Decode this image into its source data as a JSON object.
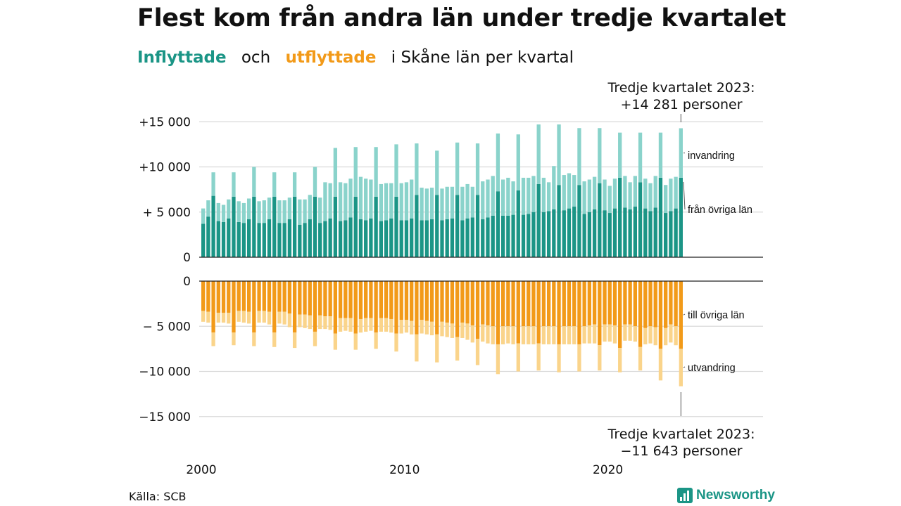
{
  "title": "Flest kom från andra län under tredje kvartalet",
  "subtitle": {
    "inflyttade": "Inflyttade",
    "och": "och",
    "utflyttade": "utflyttade",
    "rest": "i Skåne  län  per  kvartal"
  },
  "annotations": {
    "top_line1": "Tredje kvartalet 2023:",
    "top_line2": "+14 281 personer",
    "bottom_line1": "Tredje kvartalet 2023:",
    "bottom_line2": "−11 643 personer"
  },
  "source": "Källa: SCB",
  "logo": "Newsworthy",
  "colors": {
    "in_lan": "#1b9586",
    "in_invandring": "#8ad3cb",
    "out_lan": "#f29a19",
    "out_utvandring": "#fad48b",
    "grid": "#d9d9d9",
    "axis": "#222222"
  },
  "chart_data": [
    {
      "type": "bar",
      "stacked": true,
      "panel": "inflyttade",
      "x_start": "2000 Q1",
      "x_end": "2023 Q3",
      "frequency": "quarterly",
      "xticks": [
        "2000",
        "2010",
        "2020"
      ],
      "yticks": [
        "0",
        "+ 5 000",
        "+10 000",
        "+15 000"
      ],
      "ylim": [
        0,
        15000
      ],
      "series": [
        {
          "name": "från övriga län",
          "values": [
            3700,
            4500,
            6800,
            4000,
            3900,
            4300,
            6700,
            3900,
            3800,
            4200,
            6700,
            3800,
            3800,
            4200,
            6700,
            3800,
            3800,
            4200,
            6700,
            3600,
            3800,
            4200,
            6700,
            3800,
            4000,
            4300,
            6700,
            4000,
            4100,
            4400,
            6700,
            4200,
            4100,
            4300,
            6700,
            4000,
            4100,
            4300,
            6700,
            4100,
            4100,
            4300,
            6900,
            4100,
            4100,
            4200,
            6900,
            4100,
            4200,
            4300,
            6900,
            4100,
            4300,
            4400,
            6900,
            4200,
            4400,
            4600,
            7300,
            4600,
            4600,
            4700,
            7400,
            4700,
            4800,
            5000,
            8100,
            5000,
            5100,
            5300,
            8000,
            5200,
            5400,
            5600,
            8000,
            4800,
            5000,
            5300,
            8200,
            5200,
            4900,
            5400,
            8800,
            5500,
            5300,
            5600,
            8300,
            5400,
            5100,
            5500,
            8800,
            4900,
            5100,
            5400,
            8800
          ],
          "label": "från övriga län"
        },
        {
          "name": "invandring",
          "values": [
            1700,
            1800,
            2600,
            2000,
            1900,
            2100,
            2700,
            2300,
            2200,
            2300,
            3300,
            2400,
            2500,
            2400,
            2700,
            2500,
            2500,
            2400,
            2700,
            2800,
            2600,
            2700,
            3300,
            2800,
            4300,
            3900,
            5400,
            4300,
            4100,
            4300,
            5500,
            4700,
            4600,
            4300,
            5500,
            4100,
            4100,
            3900,
            5800,
            4100,
            4200,
            4300,
            5700,
            3600,
            3500,
            3500,
            4900,
            3500,
            3600,
            3500,
            5800,
            3700,
            3800,
            3400,
            5700,
            4200,
            4200,
            4400,
            6400,
            4000,
            4200,
            3700,
            6200,
            4100,
            4000,
            4000,
            6600,
            3800,
            3200,
            4800,
            6700,
            3900,
            3900,
            3500,
            6300,
            3600,
            3600,
            3600,
            6100,
            3400,
            3000,
            3300,
            5000,
            3500,
            3000,
            3400,
            5500,
            3300,
            3100,
            3500,
            5000,
            3100,
            3600,
            3500,
            5481
          ],
          "label": "invandring"
        }
      ]
    },
    {
      "type": "bar",
      "stacked": true,
      "panel": "utflyttade",
      "x_start": "2000 Q1",
      "x_end": "2023 Q3",
      "frequency": "quarterly",
      "xticks": [
        "2000",
        "2010",
        "2020"
      ],
      "yticks": [
        "0",
        "− 5 000",
        "−10 000",
        "−15 000"
      ],
      "ylim": [
        -15000,
        0
      ],
      "series": [
        {
          "name": "till övriga län",
          "values": [
            -3300,
            -3400,
            -5700,
            -3500,
            -3500,
            -3500,
            -5700,
            -3300,
            -3300,
            -3400,
            -5700,
            -3300,
            -3300,
            -3400,
            -5700,
            -3400,
            -3400,
            -3600,
            -5700,
            -3700,
            -3700,
            -3800,
            -5600,
            -3800,
            -3900,
            -3900,
            -5800,
            -4100,
            -4100,
            -4100,
            -5800,
            -4200,
            -4100,
            -4100,
            -5700,
            -4100,
            -4100,
            -4200,
            -5800,
            -4300,
            -4300,
            -4400,
            -5900,
            -4300,
            -4400,
            -4500,
            -5900,
            -4500,
            -4600,
            -4700,
            -6200,
            -4600,
            -4700,
            -4900,
            -6400,
            -4800,
            -4900,
            -5000,
            -7000,
            -5000,
            -5000,
            -5000,
            -6900,
            -5000,
            -5000,
            -5000,
            -6900,
            -5000,
            -5000,
            -5000,
            -7000,
            -5000,
            -5000,
            -5000,
            -7000,
            -5000,
            -4900,
            -4800,
            -7100,
            -4800,
            -4800,
            -4900,
            -7400,
            -4800,
            -4800,
            -5000,
            -7300,
            -5200,
            -5000,
            -5100,
            -7500,
            -5200,
            -4800,
            -5000,
            -7500
          ],
          "label": "till övriga län"
        },
        {
          "name": "utvandring",
          "values": [
            -1200,
            -1200,
            -1500,
            -1100,
            -1100,
            -1200,
            -1400,
            -1200,
            -1300,
            -1300,
            -1500,
            -1300,
            -1300,
            -1400,
            -1600,
            -1300,
            -1400,
            -1500,
            -1700,
            -1400,
            -1500,
            -1500,
            -1600,
            -1500,
            -1400,
            -1500,
            -1800,
            -1500,
            -1400,
            -1500,
            -1800,
            -1500,
            -1500,
            -1400,
            -1800,
            -1500,
            -1500,
            -1500,
            -2000,
            -1500,
            -1400,
            -1500,
            -3000,
            -1500,
            -1500,
            -1500,
            -3100,
            -1600,
            -1600,
            -1600,
            -2600,
            -1700,
            -1800,
            -1900,
            -2900,
            -1900,
            -2000,
            -2000,
            -3300,
            -2000,
            -1900,
            -2000,
            -3100,
            -2000,
            -2000,
            -2000,
            -3000,
            -2000,
            -2000,
            -2000,
            -3100,
            -2000,
            -2000,
            -2000,
            -3000,
            -1900,
            -2000,
            -2100,
            -2800,
            -1900,
            -1900,
            -2000,
            -2700,
            -1800,
            -1800,
            -1700,
            -2600,
            -1800,
            -1900,
            -2000,
            -3500,
            -1900,
            -2000,
            -2100,
            -4143
          ],
          "label": "utvandring"
        }
      ]
    }
  ]
}
